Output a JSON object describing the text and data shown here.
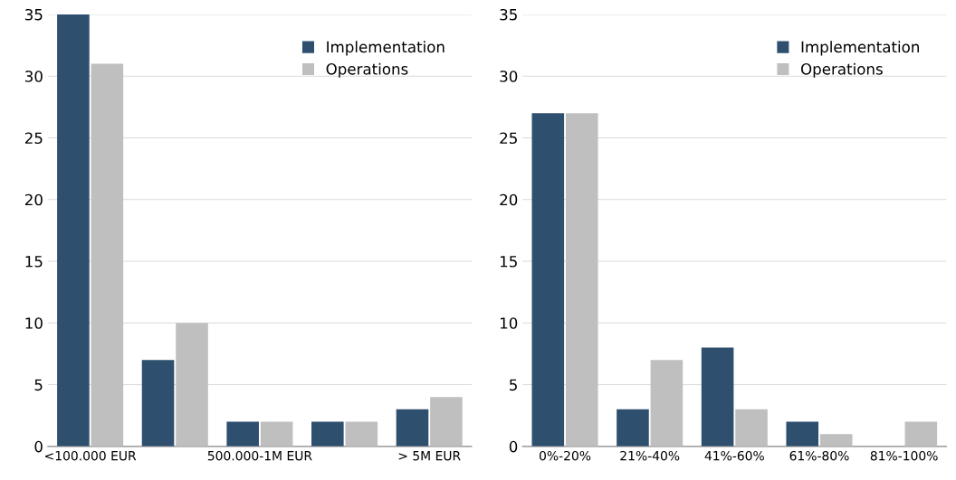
{
  "chart_data": [
    {
      "type": "bar",
      "categories": [
        "<100.000 EUR",
        null,
        "500.000-1M EUR",
        null,
        "> 5M EUR"
      ],
      "series": [
        {
          "name": "Implementation",
          "color": "#2e4f6e",
          "values": [
            35,
            7,
            2,
            2,
            3
          ]
        },
        {
          "name": "Operations",
          "color": "#bfbfbf",
          "values": [
            31,
            10,
            2,
            2,
            4
          ]
        }
      ],
      "ylim": [
        0,
        35
      ],
      "yticks": [
        0,
        5,
        10,
        15,
        20,
        25,
        30,
        35
      ],
      "grid": "y",
      "legend": "top right"
    },
    {
      "type": "bar",
      "categories": [
        "0%-20%",
        "21%-40%",
        "41%-60%",
        "61%-80%",
        "81%-100%"
      ],
      "series": [
        {
          "name": "Implementation",
          "color": "#2e4f6e",
          "values": [
            27,
            3,
            8,
            2,
            0
          ]
        },
        {
          "name": "Operations",
          "color": "#bfbfbf",
          "values": [
            27,
            7,
            3,
            1,
            2
          ]
        }
      ],
      "ylim": [
        0,
        35
      ],
      "yticks": [
        0,
        5,
        10,
        15,
        20,
        25,
        30,
        35
      ],
      "grid": "y",
      "legend": "top right"
    }
  ]
}
